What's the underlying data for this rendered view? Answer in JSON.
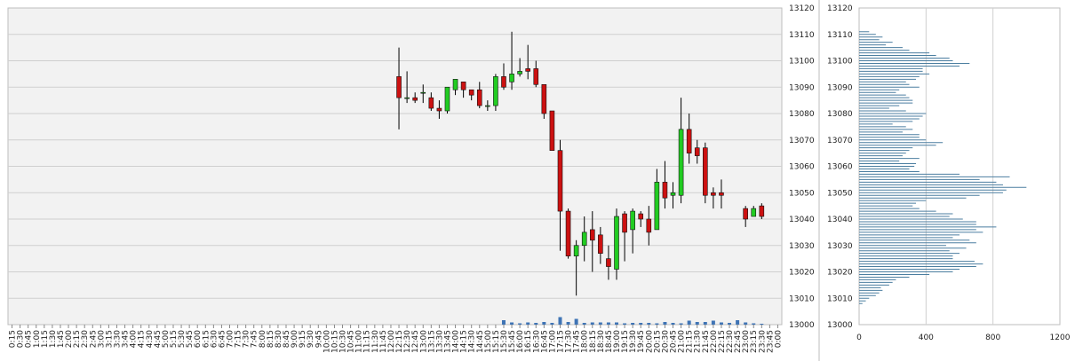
{
  "chart_data": [
    {
      "type": "candlestick",
      "title": "",
      "ylim": [
        13000,
        13120
      ],
      "yticks": [
        13000,
        13010,
        13020,
        13030,
        13040,
        13050,
        13060,
        13070,
        13080,
        13090,
        13100,
        13110,
        13120
      ],
      "grid": true,
      "up_color": "#22cc22",
      "down_color": "#cc1111",
      "volume_color": "#3f74b5",
      "xticks": [
        "0:15",
        "0:30",
        "0:45",
        "1:00",
        "1:15",
        "1:30",
        "1:45",
        "2:00",
        "2:15",
        "2:30",
        "2:45",
        "3:00",
        "3:15",
        "3:30",
        "3:45",
        "4:00",
        "4:15",
        "4:30",
        "4:45",
        "5:00",
        "5:15",
        "5:30",
        "5:45",
        "6:00",
        "6:15",
        "6:30",
        "6:45",
        "7:00",
        "7:15",
        "7:30",
        "7:45",
        "8:00",
        "8:15",
        "8:30",
        "8:45",
        "9:00",
        "9:15",
        "9:30",
        "9:45",
        "10:00",
        "10:15",
        "10:30",
        "10:45",
        "11:00",
        "11:15",
        "11:30",
        "11:45",
        "12:00",
        "12:15",
        "12:30",
        "12:45",
        "13:00",
        "13:15",
        "13:30",
        "13:45",
        "14:00",
        "14:15",
        "14:30",
        "14:45",
        "15:00",
        "15:15",
        "15:30",
        "15:45",
        "16:00",
        "16:15",
        "16:30",
        "16:45",
        "17:00",
        "17:15",
        "17:30",
        "17:45",
        "18:00",
        "18:15",
        "18:30",
        "18:45",
        "19:00",
        "19:15",
        "19:30",
        "19:45",
        "20:00",
        "20:15",
        "20:30",
        "20:45",
        "21:00",
        "21:15",
        "21:30",
        "21:45",
        "22:00",
        "22:15",
        "22:30",
        "22:45",
        "23:00",
        "23:15",
        "23:30",
        "23:45",
        "0:00"
      ],
      "candles": [
        {
          "t": "12:15",
          "o": 13094,
          "h": 13105,
          "l": 13074,
          "c": 13086
        },
        {
          "t": "12:30",
          "o": 13086,
          "h": 13096,
          "l": 13084,
          "c": 13086
        },
        {
          "t": "12:45",
          "o": 13086,
          "h": 13088,
          "l": 13084,
          "c": 13085
        },
        {
          "t": "13:00",
          "o": 13088,
          "h": 13091,
          "l": 13084,
          "c": 13088
        },
        {
          "t": "13:15",
          "o": 13086,
          "h": 13088,
          "l": 13081,
          "c": 13082
        },
        {
          "t": "13:30",
          "o": 13082,
          "h": 13085,
          "l": 13078,
          "c": 13081
        },
        {
          "t": "13:45",
          "o": 13081,
          "h": 13090,
          "l": 13080,
          "c": 13090
        },
        {
          "t": "14:00",
          "o": 13089,
          "h": 13093,
          "l": 13087,
          "c": 13093
        },
        {
          "t": "14:15",
          "o": 13092,
          "h": 13092,
          "l": 13086,
          "c": 13089
        },
        {
          "t": "14:30",
          "o": 13089,
          "h": 13089,
          "l": 13085,
          "c": 13087
        },
        {
          "t": "14:45",
          "o": 13089,
          "h": 13092,
          "l": 13082,
          "c": 13083
        },
        {
          "t": "15:00",
          "o": 13083,
          "h": 13085,
          "l": 13081,
          "c": 13083
        },
        {
          "t": "15:15",
          "o": 13083,
          "h": 13095,
          "l": 13081,
          "c": 13094
        },
        {
          "t": "15:30",
          "o": 13094,
          "h": 13099,
          "l": 13089,
          "c": 13090
        },
        {
          "t": "15:45",
          "o": 13092,
          "h": 13111,
          "l": 13089,
          "c": 13095
        },
        {
          "t": "16:00",
          "o": 13095,
          "h": 13101,
          "l": 13094,
          "c": 13096
        },
        {
          "t": "16:15",
          "o": 13097,
          "h": 13106,
          "l": 13093,
          "c": 13096
        },
        {
          "t": "16:30",
          "o": 13097,
          "h": 13100,
          "l": 13090,
          "c": 13091
        },
        {
          "t": "16:45",
          "o": 13091,
          "h": 13091,
          "l": 13078,
          "c": 13080
        },
        {
          "t": "17:00",
          "o": 13081,
          "h": 13081,
          "l": 13066,
          "c": 13066
        },
        {
          "t": "17:15",
          "o": 13066,
          "h": 13070,
          "l": 13028,
          "c": 13043
        },
        {
          "t": "17:30",
          "o": 13043,
          "h": 13044,
          "l": 13025,
          "c": 13026
        },
        {
          "t": "17:45",
          "o": 13026,
          "h": 13032,
          "l": 13011,
          "c": 13030
        },
        {
          "t": "18:00",
          "o": 13030,
          "h": 13041,
          "l": 13024,
          "c": 13035
        },
        {
          "t": "18:15",
          "o": 13036,
          "h": 13043,
          "l": 13020,
          "c": 13032
        },
        {
          "t": "18:30",
          "o": 13034,
          "h": 13037,
          "l": 13023,
          "c": 13027
        },
        {
          "t": "18:45",
          "o": 13025,
          "h": 13030,
          "l": 13017,
          "c": 13022
        },
        {
          "t": "19:00",
          "o": 13021,
          "h": 13044,
          "l": 13017,
          "c": 13041
        },
        {
          "t": "19:15",
          "o": 13042,
          "h": 13043,
          "l": 13024,
          "c": 13035
        },
        {
          "t": "19:30",
          "o": 13036,
          "h": 13044,
          "l": 13027,
          "c": 13043
        },
        {
          "t": "19:45",
          "o": 13042,
          "h": 13043,
          "l": 13037,
          "c": 13040
        },
        {
          "t": "20:00",
          "o": 13040,
          "h": 13045,
          "l": 13030,
          "c": 13035
        },
        {
          "t": "20:15",
          "o": 13036,
          "h": 13059,
          "l": 13036,
          "c": 13054
        },
        {
          "t": "20:30",
          "o": 13054,
          "h": 13062,
          "l": 13044,
          "c": 13048
        },
        {
          "t": "20:45",
          "o": 13049,
          "h": 13054,
          "l": 13044,
          "c": 13050
        },
        {
          "t": "21:00",
          "o": 13049,
          "h": 13086,
          "l": 13046,
          "c": 13074
        },
        {
          "t": "21:15",
          "o": 13074,
          "h": 13080,
          "l": 13061,
          "c": 13065
        },
        {
          "t": "21:30",
          "o": 13067,
          "h": 13070,
          "l": 13061,
          "c": 13064
        },
        {
          "t": "21:45",
          "o": 13067,
          "h": 13069,
          "l": 13046,
          "c": 13049
        },
        {
          "t": "22:00",
          "o": 13050,
          "h": 13052,
          "l": 13044,
          "c": 13049
        },
        {
          "t": "22:15",
          "o": 13050,
          "h": 13055,
          "l": 13044,
          "c": 13049
        },
        {
          "t": "23:00",
          "o": 13044,
          "h": 13045,
          "l": 13037,
          "c": 13040
        },
        {
          "t": "23:15",
          "o": 13041,
          "h": 13045,
          "l": 13041,
          "c": 13044
        },
        {
          "t": "23:30",
          "o": 13045,
          "h": 13046,
          "l": 13040,
          "c": 13041
        }
      ],
      "volume": [
        {
          "t": "15:30",
          "v": 1.0
        },
        {
          "t": "15:45",
          "v": 0.5
        },
        {
          "t": "16:00",
          "v": 0.3
        },
        {
          "t": "16:15",
          "v": 0.5
        },
        {
          "t": "16:30",
          "v": 0.4
        },
        {
          "t": "16:45",
          "v": 0.6
        },
        {
          "t": "17:00",
          "v": 0.4
        },
        {
          "t": "17:15",
          "v": 1.7
        },
        {
          "t": "17:30",
          "v": 0.6
        },
        {
          "t": "17:45",
          "v": 1.3
        },
        {
          "t": "18:00",
          "v": 0.4
        },
        {
          "t": "18:15",
          "v": 0.5
        },
        {
          "t": "18:30",
          "v": 0.5
        },
        {
          "t": "18:45",
          "v": 0.5
        },
        {
          "t": "19:00",
          "v": 0.5
        },
        {
          "t": "19:15",
          "v": 0.3
        },
        {
          "t": "19:30",
          "v": 0.4
        },
        {
          "t": "19:45",
          "v": 0.4
        },
        {
          "t": "20:00",
          "v": 0.4
        },
        {
          "t": "20:15",
          "v": 0.3
        },
        {
          "t": "20:30",
          "v": 0.6
        },
        {
          "t": "20:45",
          "v": 0.4
        },
        {
          "t": "21:00",
          "v": 0.3
        },
        {
          "t": "21:15",
          "v": 0.9
        },
        {
          "t": "21:30",
          "v": 0.6
        },
        {
          "t": "21:45",
          "v": 0.6
        },
        {
          "t": "22:00",
          "v": 0.9
        },
        {
          "t": "22:15",
          "v": 0.5
        },
        {
          "t": "22:30",
          "v": 0.4
        },
        {
          "t": "22:45",
          "v": 1.0
        },
        {
          "t": "23:00",
          "v": 0.5
        },
        {
          "t": "23:15",
          "v": 0.3
        },
        {
          "t": "23:30",
          "v": 0.2
        }
      ]
    },
    {
      "type": "bar",
      "orientation": "horizontal",
      "title": "",
      "ylim": [
        13000,
        13120
      ],
      "yticks": [
        13000,
        13010,
        13020,
        13030,
        13040,
        13050,
        13060,
        13070,
        13080,
        13090,
        13100,
        13110,
        13120
      ],
      "xlim": [
        0,
        1200
      ],
      "xticks": [
        0,
        400,
        800,
        1200
      ],
      "grid": true,
      "bar_color": "#4b7ea0",
      "price_levels": [
        13008,
        13009,
        13010,
        13011,
        13012,
        13013,
        13014,
        13015,
        13016,
        13017,
        13018,
        13019,
        13020,
        13021,
        13022,
        13023,
        13024,
        13025,
        13026,
        13027,
        13028,
        13029,
        13030,
        13031,
        13032,
        13033,
        13034,
        13035,
        13036,
        13037,
        13038,
        13039,
        13040,
        13041,
        13042,
        13043,
        13044,
        13045,
        13046,
        13047,
        13048,
        13049,
        13050,
        13051,
        13052,
        13053,
        13054,
        13055,
        13056,
        13057,
        13058,
        13059,
        13060,
        13061,
        13062,
        13063,
        13064,
        13065,
        13066,
        13067,
        13068,
        13069,
        13070,
        13071,
        13072,
        13073,
        13074,
        13075,
        13076,
        13077,
        13078,
        13079,
        13080,
        13081,
        13082,
        13083,
        13084,
        13085,
        13086,
        13087,
        13088,
        13089,
        13090,
        13091,
        13092,
        13093,
        13094,
        13095,
        13096,
        13097,
        13098,
        13099,
        13100,
        13101,
        13102,
        13103,
        13104,
        13105,
        13106,
        13107,
        13108,
        13109,
        13110,
        13111
      ],
      "values": [
        20,
        40,
        60,
        100,
        120,
        140,
        130,
        180,
        200,
        220,
        300,
        420,
        560,
        600,
        700,
        740,
        690,
        560,
        560,
        600,
        540,
        640,
        520,
        700,
        660,
        560,
        600,
        740,
        700,
        820,
        700,
        700,
        620,
        540,
        560,
        460,
        360,
        320,
        340,
        400,
        640,
        720,
        860,
        880,
        1000,
        860,
        820,
        720,
        900,
        600,
        360,
        300,
        330,
        340,
        240,
        360,
        260,
        280,
        300,
        320,
        460,
        500,
        400,
        360,
        360,
        260,
        320,
        280,
        200,
        320,
        360,
        380,
        400,
        280,
        180,
        240,
        320,
        320,
        300,
        280,
        220,
        240,
        360,
        300,
        280,
        340,
        360,
        420,
        380,
        380,
        600,
        660,
        560,
        540,
        460,
        420,
        300,
        260,
        160,
        200,
        120,
        140,
        100,
        60
      ]
    }
  ]
}
